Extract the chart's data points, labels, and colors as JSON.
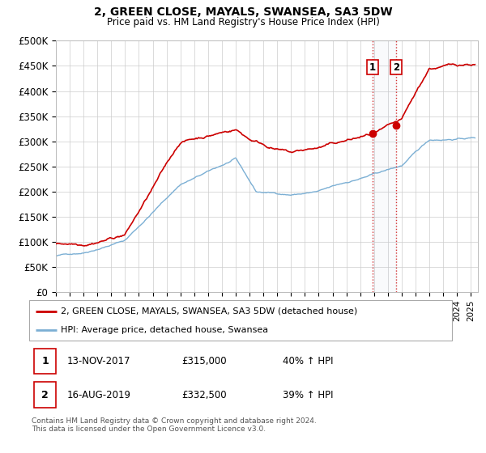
{
  "title": "2, GREEN CLOSE, MAYALS, SWANSEA, SA3 5DW",
  "subtitle": "Price paid vs. HM Land Registry's House Price Index (HPI)",
  "ylim": [
    0,
    500000
  ],
  "yticks": [
    0,
    50000,
    100000,
    150000,
    200000,
    250000,
    300000,
    350000,
    400000,
    450000,
    500000
  ],
  "ytick_labels": [
    "£0",
    "£50K",
    "£100K",
    "£150K",
    "£200K",
    "£250K",
    "£300K",
    "£350K",
    "£400K",
    "£450K",
    "£500K"
  ],
  "xlim_start": 1995.0,
  "xlim_end": 2025.5,
  "sale1_date": 2017.87,
  "sale1_value": 315000,
  "sale2_date": 2019.62,
  "sale2_value": 332500,
  "property_color": "#cc0000",
  "hpi_color": "#7bafd4",
  "legend_label1": "2, GREEN CLOSE, MAYALS, SWANSEA, SA3 5DW (detached house)",
  "legend_label2": "HPI: Average price, detached house, Swansea",
  "annotation1_date": "13-NOV-2017",
  "annotation1_price": "£315,000",
  "annotation1_hpi": "40% ↑ HPI",
  "annotation2_date": "16-AUG-2019",
  "annotation2_price": "£332,500",
  "annotation2_hpi": "39% ↑ HPI",
  "footer_line1": "Contains HM Land Registry data © Crown copyright and database right 2024.",
  "footer_line2": "This data is licensed under the Open Government Licence v3.0.",
  "background_color": "#ffffff",
  "grid_color": "#cccccc"
}
